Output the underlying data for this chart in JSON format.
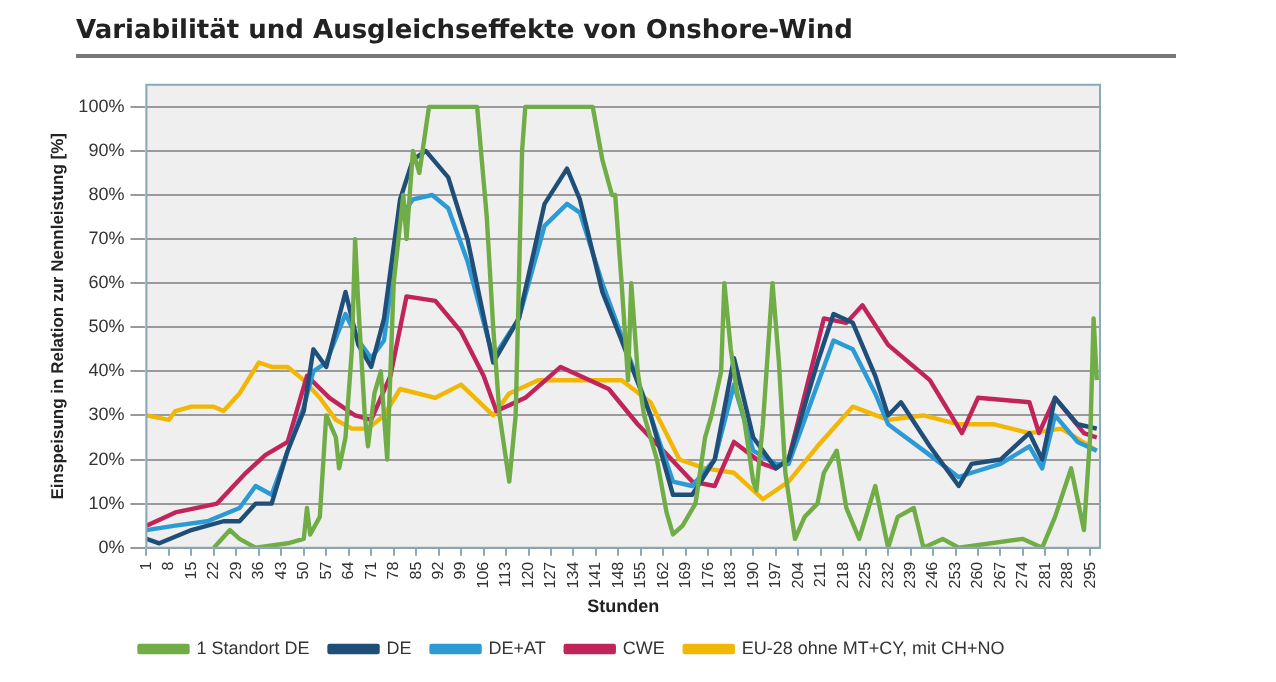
{
  "chart_data": {
    "type": "line",
    "title": "Variabilität und Ausgleichseffekte von Onshore-Wind",
    "xlabel": "Stunden",
    "ylabel": "Einspeisung in Relation zur Nennleistung [%]",
    "grid": true,
    "legend": "bottom",
    "xlim": [
      1,
      298
    ],
    "xticks": [
      1,
      8,
      15,
      22,
      29,
      36,
      43,
      50,
      57,
      64,
      71,
      78,
      85,
      92,
      99,
      106,
      113,
      120,
      127,
      134,
      141,
      148,
      155,
      162,
      169,
      176,
      183,
      190,
      197,
      204,
      211,
      218,
      225,
      232,
      239,
      246,
      253,
      260,
      267,
      274,
      281,
      288,
      295
    ],
    "ylim": [
      0,
      105
    ],
    "yticks": [
      {
        "value": 0,
        "label": "0%"
      },
      {
        "value": 10,
        "label": "10%"
      },
      {
        "value": 20,
        "label": "20%"
      },
      {
        "value": 30,
        "label": "30%"
      },
      {
        "value": 40,
        "label": "40%"
      },
      {
        "value": 50,
        "label": "50%"
      },
      {
        "value": 60,
        "label": "60%"
      },
      {
        "value": 70,
        "label": "70%"
      },
      {
        "value": 80,
        "label": "80%"
      },
      {
        "value": 90,
        "label": "90%"
      },
      {
        "value": 100,
        "label": "100%"
      }
    ],
    "series": [
      {
        "name": "1 Standort DE",
        "color": "#70ad47",
        "x": [
          22,
          27,
          30,
          35,
          45,
          50,
          51,
          52,
          55,
          57,
          60,
          61,
          63,
          65,
          66,
          67,
          69,
          70,
          72,
          74,
          76,
          78,
          81,
          82,
          84,
          86,
          88,
          89,
          90,
          104,
          107,
          109,
          111,
          113,
          114,
          116,
          118,
          119,
          140,
          143,
          146,
          147,
          149,
          151,
          152,
          154,
          156,
          160,
          163,
          165,
          168,
          172,
          175,
          177,
          180,
          181,
          183,
          185,
          187,
          190,
          191,
          193,
          196,
          198,
          200,
          203,
          206,
          210,
          212,
          216,
          219,
          223,
          228,
          232,
          235,
          240,
          243,
          249,
          254,
          274,
          280,
          284,
          289,
          293,
          295,
          296,
          297
        ],
        "values": [
          0,
          4,
          2,
          0,
          1,
          2,
          9,
          3,
          7,
          30,
          25,
          18,
          25,
          45,
          70,
          55,
          30,
          23,
          35,
          40,
          20,
          60,
          80,
          70,
          90,
          85,
          95,
          100,
          100,
          100,
          75,
          50,
          30,
          20,
          15,
          30,
          90,
          100,
          100,
          88,
          80,
          80,
          60,
          38,
          60,
          40,
          30,
          20,
          8,
          3,
          5,
          10,
          25,
          30,
          40,
          60,
          45,
          35,
          30,
          15,
          13,
          28,
          60,
          42,
          17,
          2,
          7,
          10,
          17,
          22,
          9,
          2,
          14,
          0,
          7,
          9,
          0,
          2,
          0,
          2,
          0,
          7,
          18,
          4,
          26,
          52,
          38
        ]
      },
      {
        "name": "DE",
        "color": "#1f4e79",
        "x": [
          1,
          5,
          15,
          25,
          30,
          35,
          40,
          45,
          50,
          53,
          57,
          63,
          67,
          71,
          75,
          80,
          84,
          88,
          95,
          101,
          109,
          117,
          125,
          132,
          136,
          143,
          149,
          158,
          165,
          171,
          178,
          184,
          190,
          197,
          201,
          210,
          215,
          221,
          228,
          232,
          236,
          245,
          254,
          258,
          267,
          276,
          280,
          284,
          291,
          297
        ],
        "values": [
          2,
          1,
          4,
          6,
          6,
          10,
          10,
          22,
          31,
          45,
          41,
          58,
          46,
          41,
          52,
          79,
          88,
          90,
          84,
          70,
          42,
          52,
          78,
          86,
          79,
          58,
          47,
          30,
          12,
          12,
          20,
          43,
          25,
          18,
          20,
          42,
          53,
          51,
          39,
          30,
          33,
          23,
          14,
          19,
          20,
          26,
          20,
          34,
          28,
          27
        ]
      },
      {
        "name": "DE+AT",
        "color": "#2c9ad4",
        "x": [
          1,
          10,
          20,
          30,
          35,
          40,
          45,
          50,
          53,
          57,
          63,
          67,
          71,
          75,
          80,
          84,
          90,
          95,
          101,
          109,
          117,
          125,
          132,
          136,
          143,
          149,
          158,
          165,
          171,
          178,
          184,
          190,
          197,
          201,
          210,
          215,
          221,
          228,
          232,
          245,
          254,
          258,
          267,
          276,
          280,
          284,
          291,
          297
        ],
        "values": [
          4,
          5,
          6,
          9,
          14,
          12,
          22,
          32,
          40,
          42,
          53,
          47,
          43,
          47,
          75,
          79,
          80,
          77,
          65,
          43,
          52,
          73,
          78,
          76,
          60,
          48,
          30,
          15,
          14,
          20,
          37,
          22,
          19,
          19,
          37,
          47,
          45,
          35,
          28,
          21,
          16,
          17,
          19,
          23,
          18,
          30,
          24,
          22
        ]
      },
      {
        "name": "CWE",
        "color": "#c0245a",
        "x": [
          1,
          10,
          23,
          32,
          38,
          45,
          51,
          58,
          66,
          71,
          77,
          82,
          91,
          99,
          106,
          110,
          119,
          130,
          136,
          145,
          154,
          162,
          171,
          178,
          184,
          193,
          197,
          201,
          212,
          219,
          224,
          232,
          245,
          255,
          260,
          276,
          279,
          284,
          293,
          297
        ],
        "values": [
          5,
          8,
          10,
          17,
          21,
          24,
          39,
          34,
          30,
          29,
          39,
          57,
          56,
          49,
          39,
          31,
          34,
          41,
          39,
          36,
          28,
          22,
          15,
          14,
          24,
          19,
          18,
          20,
          52,
          51,
          55,
          46,
          38,
          26,
          34,
          33,
          26,
          34,
          26,
          25
        ]
      },
      {
        "name": "EU-28 ohne MT+CY, mit CH+NO",
        "color": "#f2b705",
        "x": [
          1,
          8,
          10,
          15,
          22,
          25,
          30,
          36,
          40,
          45,
          50,
          55,
          60,
          65,
          70,
          75,
          80,
          91,
          99,
          109,
          114,
          123,
          136,
          149,
          158,
          167,
          175,
          184,
          193,
          201,
          210,
          221,
          232,
          243,
          254,
          265,
          276,
          286,
          297
        ],
        "values": [
          30,
          29,
          31,
          32,
          32,
          31,
          35,
          42,
          41,
          41,
          38,
          34,
          29,
          27,
          27,
          30,
          36,
          34,
          37,
          30,
          35,
          38,
          38,
          38,
          33,
          20,
          18,
          17,
          11,
          15,
          23,
          32,
          29,
          30,
          28,
          28,
          26,
          27,
          22
        ]
      }
    ]
  }
}
